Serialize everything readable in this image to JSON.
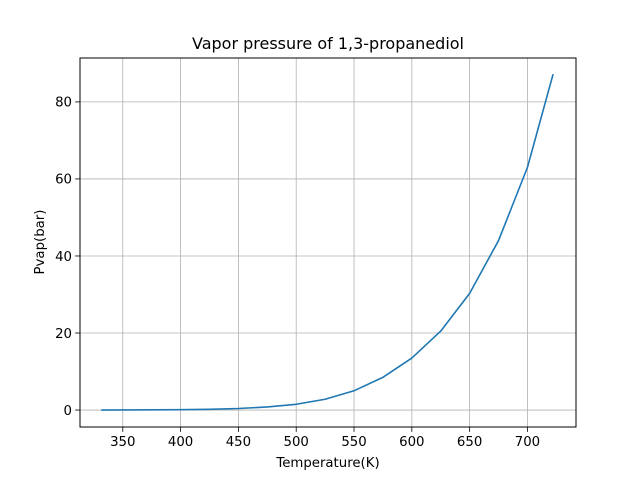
{
  "chart_data": {
    "type": "line",
    "title": "Vapor pressure of 1,3-propanediol",
    "xlabel": "Temperature(K)",
    "ylabel": "Pvap(bar)",
    "xlim": [
      313,
      742
    ],
    "ylim": [
      -4.4,
      91.4
    ],
    "xticks": [
      350,
      400,
      450,
      500,
      550,
      600,
      650,
      700
    ],
    "yticks": [
      0,
      20,
      40,
      60,
      80
    ],
    "xtick_labels": [
      "350",
      "400",
      "450",
      "500",
      "550",
      "600",
      "650",
      "700"
    ],
    "ytick_labels": [
      "0",
      "20",
      "40",
      "60",
      "80"
    ],
    "grid": true,
    "line_color": "#1f77b4",
    "series": [
      {
        "x": [
          332,
          350,
          375,
          400,
          425,
          450,
          475,
          500,
          525,
          550,
          575,
          600,
          625,
          650,
          675,
          700,
          722
        ],
        "y": [
          0.0,
          0.02,
          0.05,
          0.1,
          0.2,
          0.4,
          0.8,
          1.5,
          2.8,
          5.0,
          8.5,
          13.5,
          20.5,
          30.3,
          44.0,
          63.0,
          87.0
        ]
      }
    ]
  }
}
